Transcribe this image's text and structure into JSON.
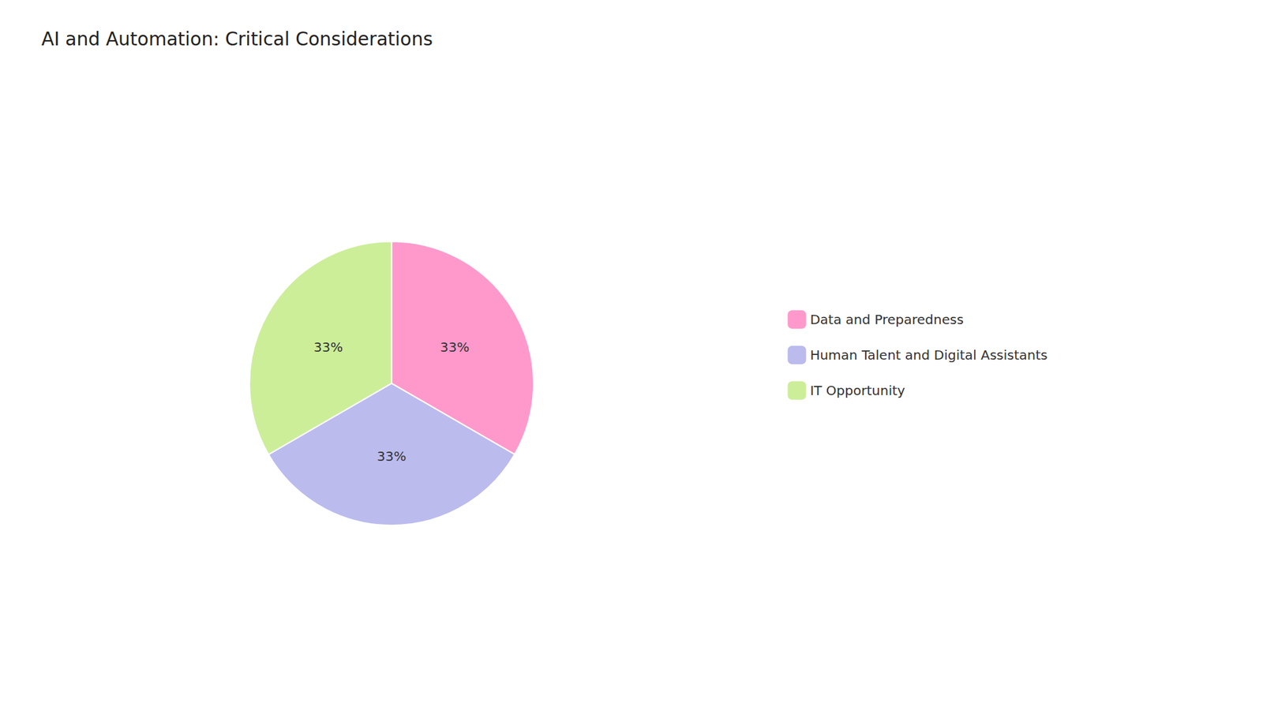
{
  "chart_data": {
    "type": "pie",
    "title": "AI and Automation: Critical Considerations",
    "categories": [
      "Data and Preparedness",
      "Human Talent and Digital Assistants",
      "IT Opportunity"
    ],
    "values": [
      33.33,
      33.33,
      33.34
    ],
    "value_labels": [
      "33%",
      "33%",
      "33%"
    ],
    "colors": [
      "#FF99CC",
      "#BBBBEE",
      "#CCEE99"
    ],
    "data_labels": true,
    "legend": "right"
  }
}
